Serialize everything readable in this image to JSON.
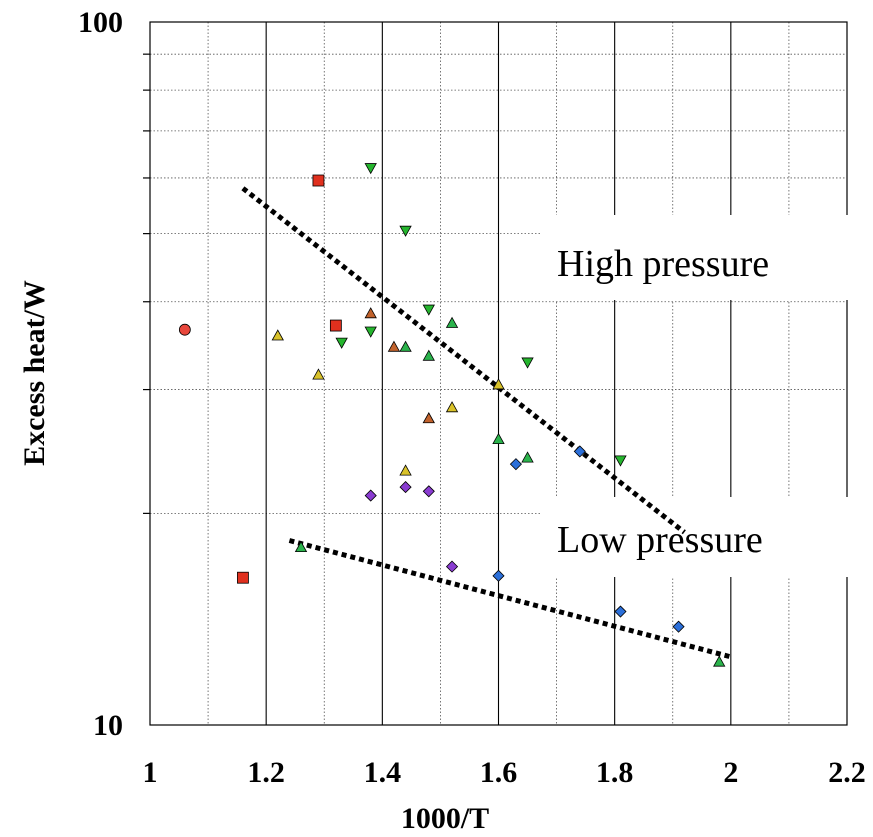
{
  "chart_data": {
    "type": "scatter",
    "xlabel": "1000/T",
    "ylabel": "Excess heat/W",
    "xlim": [
      1.0,
      2.2
    ],
    "ylim": [
      10,
      100
    ],
    "yscale": "log",
    "x_ticks": [
      "1",
      "1.2",
      "1.4",
      "1.6",
      "1.8",
      "2",
      "2.2"
    ],
    "y_ticks": [
      "10",
      "100"
    ],
    "grid": true,
    "series": [
      {
        "marker": "circle",
        "color": "#e8473c",
        "points": [
          [
            1.06,
            36.5
          ]
        ]
      },
      {
        "marker": "square",
        "color": "#e0301e",
        "points": [
          [
            1.29,
            59.5
          ],
          [
            1.32,
            37.0
          ],
          [
            1.16,
            16.2
          ]
        ]
      },
      {
        "marker": "triangle-up",
        "color": "#d9c22a",
        "points": [
          [
            1.22,
            35.8
          ],
          [
            1.29,
            31.5
          ],
          [
            1.52,
            28.3
          ],
          [
            1.6,
            30.5
          ],
          [
            1.44,
            23.0
          ]
        ]
      },
      {
        "marker": "triangle-up",
        "color": "#c1622c",
        "points": [
          [
            1.38,
            38.5
          ],
          [
            1.42,
            34.5
          ],
          [
            1.48,
            27.3
          ]
        ]
      },
      {
        "marker": "triangle-up",
        "color": "#2bb34c",
        "points": [
          [
            1.44,
            34.5
          ],
          [
            1.48,
            33.5
          ],
          [
            1.52,
            37.3
          ],
          [
            1.6,
            25.5
          ],
          [
            1.65,
            24.0
          ],
          [
            1.26,
            17.9
          ],
          [
            1.98,
            12.3
          ]
        ]
      },
      {
        "marker": "triangle-down",
        "color": "#25b52e",
        "points": [
          [
            1.38,
            62.0
          ],
          [
            1.44,
            50.5
          ],
          [
            1.48,
            39.0
          ],
          [
            1.38,
            36.3
          ],
          [
            1.33,
            35.0
          ],
          [
            1.65,
            32.8
          ],
          [
            1.81,
            23.8
          ]
        ]
      },
      {
        "marker": "diamond",
        "color": "#2b6fd9",
        "points": [
          [
            1.63,
            23.5
          ],
          [
            1.74,
            24.5
          ],
          [
            1.6,
            16.3
          ],
          [
            1.81,
            14.5
          ],
          [
            1.91,
            13.8
          ]
        ]
      },
      {
        "marker": "diamond",
        "color": "#8a3cd1",
        "points": [
          [
            1.38,
            21.2
          ],
          [
            1.44,
            21.8
          ],
          [
            1.48,
            21.5
          ],
          [
            1.52,
            16.8
          ]
        ]
      }
    ],
    "trendlines": [
      {
        "x": [
          1.16,
          1.92
        ],
        "y": [
          58.0,
          18.8
        ]
      },
      {
        "x": [
          1.24,
          2.0
        ],
        "y": [
          18.3,
          12.5
        ]
      }
    ],
    "annotations": [
      "High pressure",
      "Low pressure"
    ]
  }
}
